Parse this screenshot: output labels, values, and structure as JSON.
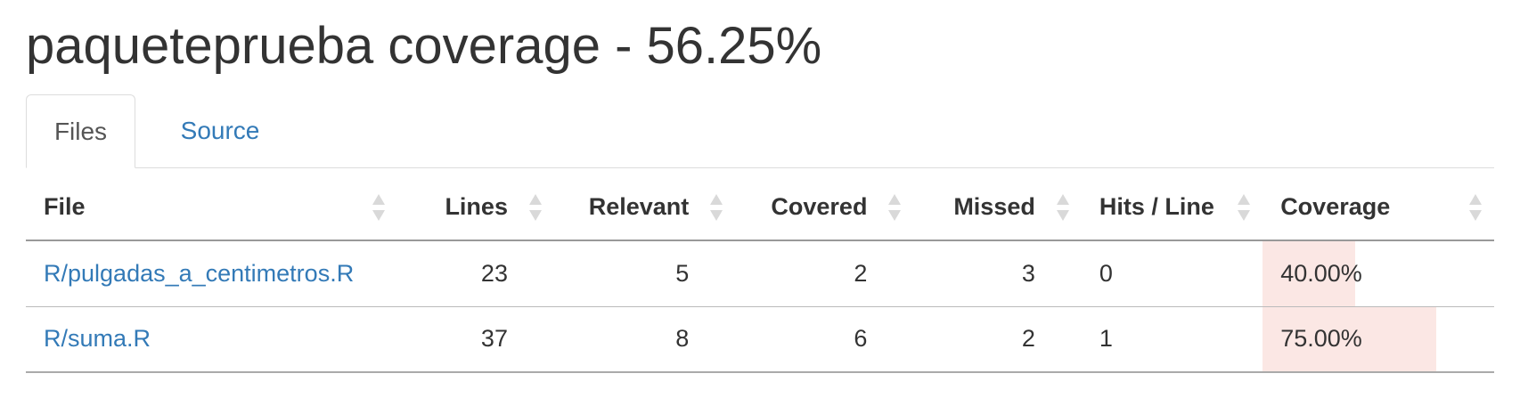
{
  "page": {
    "title": "paqueteprueba coverage - 56.25%"
  },
  "tabs": [
    {
      "label": "Files",
      "active": true
    },
    {
      "label": "Source",
      "active": false
    }
  ],
  "table": {
    "headers": {
      "file": "File",
      "lines": "Lines",
      "relevant": "Relevant",
      "covered": "Covered",
      "missed": "Missed",
      "hits": "Hits / Line",
      "coverage": "Coverage"
    },
    "rows": [
      {
        "file": "R/pulgadas_a_centimetros.R",
        "lines": "23",
        "relevant": "5",
        "covered": "2",
        "missed": "3",
        "hits": "0",
        "coverage": "40.00%",
        "coverage_fraction": 0.4
      },
      {
        "file": "R/suma.R",
        "lines": "37",
        "relevant": "8",
        "covered": "6",
        "missed": "2",
        "hits": "1",
        "coverage": "75.00%",
        "coverage_fraction": 0.75
      }
    ]
  },
  "colors": {
    "link": "#337ab7",
    "coverage_bar": "#fbe7e4",
    "text": "#333333"
  }
}
